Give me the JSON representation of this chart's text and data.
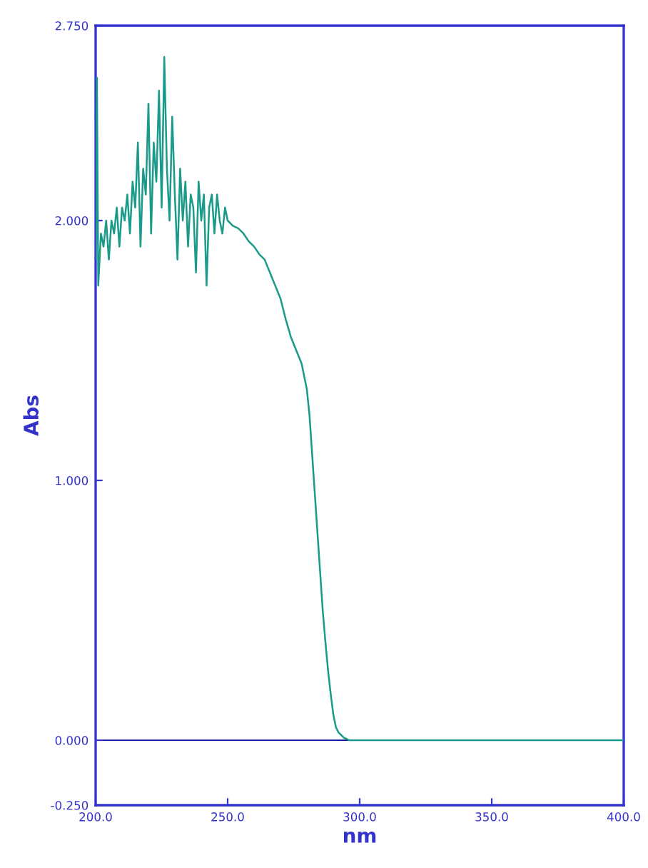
{
  "chart_data": {
    "type": "line",
    "xlabel": "nm",
    "ylabel": "Abs",
    "x": [
      200,
      200.5,
      201,
      202,
      203,
      204,
      205,
      206,
      207,
      208,
      209,
      210,
      211,
      212,
      213,
      214,
      215,
      216,
      217,
      218,
      219,
      220,
      221,
      222,
      223,
      224,
      225,
      226,
      227,
      228,
      229,
      230,
      231,
      232,
      233,
      234,
      235,
      236,
      237,
      238,
      239,
      240,
      241,
      242,
      243,
      244,
      245,
      246,
      247,
      248,
      249,
      250,
      252,
      254,
      256,
      258,
      260,
      262,
      264,
      266,
      268,
      270,
      272,
      274,
      276,
      278,
      280,
      281,
      282,
      283,
      284,
      285,
      286,
      287,
      288,
      289,
      290,
      291,
      292,
      294,
      296,
      300,
      320,
      340,
      360,
      380,
      400
    ],
    "series": [
      {
        "color": "#1a9a8a",
        "values": [
          1.85,
          2.55,
          1.75,
          1.95,
          1.9,
          2.0,
          1.85,
          2.0,
          1.95,
          2.05,
          1.9,
          2.05,
          2.0,
          2.1,
          1.95,
          2.15,
          2.05,
          2.3,
          1.9,
          2.2,
          2.1,
          2.45,
          1.95,
          2.3,
          2.15,
          2.5,
          2.05,
          2.63,
          2.2,
          2.0,
          2.4,
          2.1,
          1.85,
          2.2,
          2.0,
          2.15,
          1.9,
          2.1,
          2.05,
          1.8,
          2.15,
          2.0,
          2.1,
          1.75,
          2.05,
          2.1,
          1.95,
          2.1,
          2.0,
          1.95,
          2.05,
          2.0,
          1.98,
          1.97,
          1.95,
          1.92,
          1.9,
          1.87,
          1.85,
          1.8,
          1.75,
          1.7,
          1.62,
          1.55,
          1.5,
          1.45,
          1.35,
          1.25,
          1.1,
          0.95,
          0.8,
          0.65,
          0.5,
          0.38,
          0.27,
          0.18,
          0.1,
          0.05,
          0.03,
          0.01,
          0.0,
          0.0,
          0.0,
          0.0,
          0.0,
          0.0,
          0.0
        ]
      }
    ],
    "xlim": [
      200,
      400
    ],
    "xticks": [
      {
        "value": 200,
        "label": "200.0"
      },
      {
        "value": 250,
        "label": "250.0"
      },
      {
        "value": 300,
        "label": "300.0"
      },
      {
        "value": 350,
        "label": "350.0"
      },
      {
        "value": 400,
        "label": "400.0"
      }
    ],
    "ylim": [
      -0.25,
      2.75
    ],
    "yticks": [
      {
        "value": -0.25,
        "label": "-0.250"
      },
      {
        "value": 0,
        "label": "0.000"
      },
      {
        "value": 1,
        "label": "1.000"
      },
      {
        "value": 2,
        "label": "2.000"
      },
      {
        "value": 2.75,
        "label": "2.750"
      }
    ],
    "ref_lines": [
      {
        "axis": "y",
        "value": 0,
        "color": "#1a1aa0"
      }
    ],
    "grid": false,
    "legend": false
  }
}
